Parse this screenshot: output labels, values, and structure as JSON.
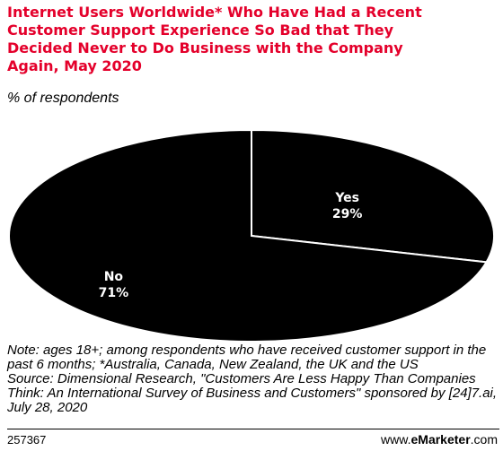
{
  "header": {
    "title": "Internet Users Worldwide* Who Have Had a Recent\nCustomer Support Experience So Bad that They\nDecided Never to Do Business with the Company\nAgain, May 2020",
    "subtitle": "% of respondents"
  },
  "chart_data": {
    "type": "pie",
    "slices": [
      {
        "label": "Yes",
        "value": 29,
        "value_label": "29%"
      },
      {
        "label": "No",
        "value": 71,
        "value_label": "71%"
      }
    ],
    "colors": {
      "fill": "#000000",
      "divider": "#ffffff",
      "label": "#ffffff"
    }
  },
  "footnote": {
    "note": "Note: ages 18+; among respondents who have received customer support in the past 6 months; *Australia, Canada, New Zealand, the UK and the US",
    "source": "Source: Dimensional Research, \"Customers Are Less Happy Than Companies Think: An International Survey of Business and Customers\" sponsored by [24]7.ai, July 28, 2020"
  },
  "footer": {
    "chart_id": "257367",
    "brand_prefix": "www.",
    "brand_name": "eMarketer",
    "brand_suffix": ".com"
  }
}
